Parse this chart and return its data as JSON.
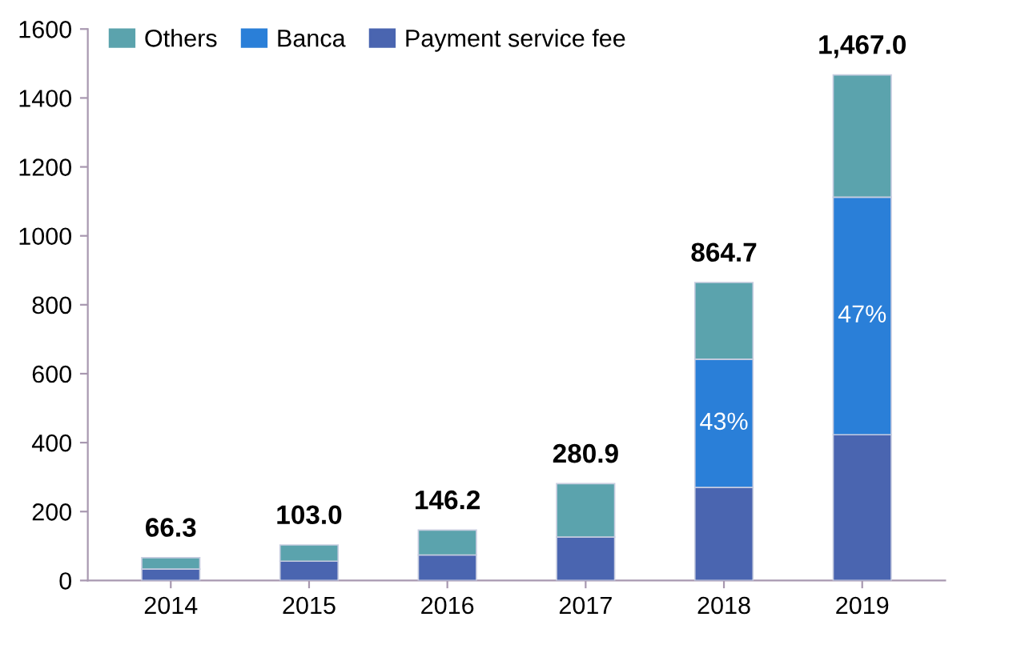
{
  "chart_data": {
    "type": "bar",
    "stacked": true,
    "categories": [
      "2014",
      "2015",
      "2016",
      "2017",
      "2018",
      "2019"
    ],
    "series": [
      {
        "name": "Payment service fee",
        "color": "#4a65b0",
        "values": [
          33,
          56,
          74,
          126,
          270,
          423
        ]
      },
      {
        "name": "Banca",
        "color": "#2a7fd8",
        "values": [
          null,
          null,
          null,
          null,
          372,
          689
        ]
      },
      {
        "name": "Others",
        "color": "#5ba3ad",
        "values": [
          33.3,
          47,
          72.2,
          154.9,
          222.7,
          355
        ]
      }
    ],
    "totals": [
      "66.3",
      "103.0",
      "146.2",
      "280.9",
      "864.7",
      "1,467.0"
    ],
    "annotations": [
      "43%",
      "47%"
    ],
    "ylim": [
      0,
      1600
    ],
    "yticks": [
      0,
      200,
      400,
      600,
      800,
      1000,
      1200,
      1400,
      1600
    ],
    "grid": false,
    "legend": "top left"
  }
}
